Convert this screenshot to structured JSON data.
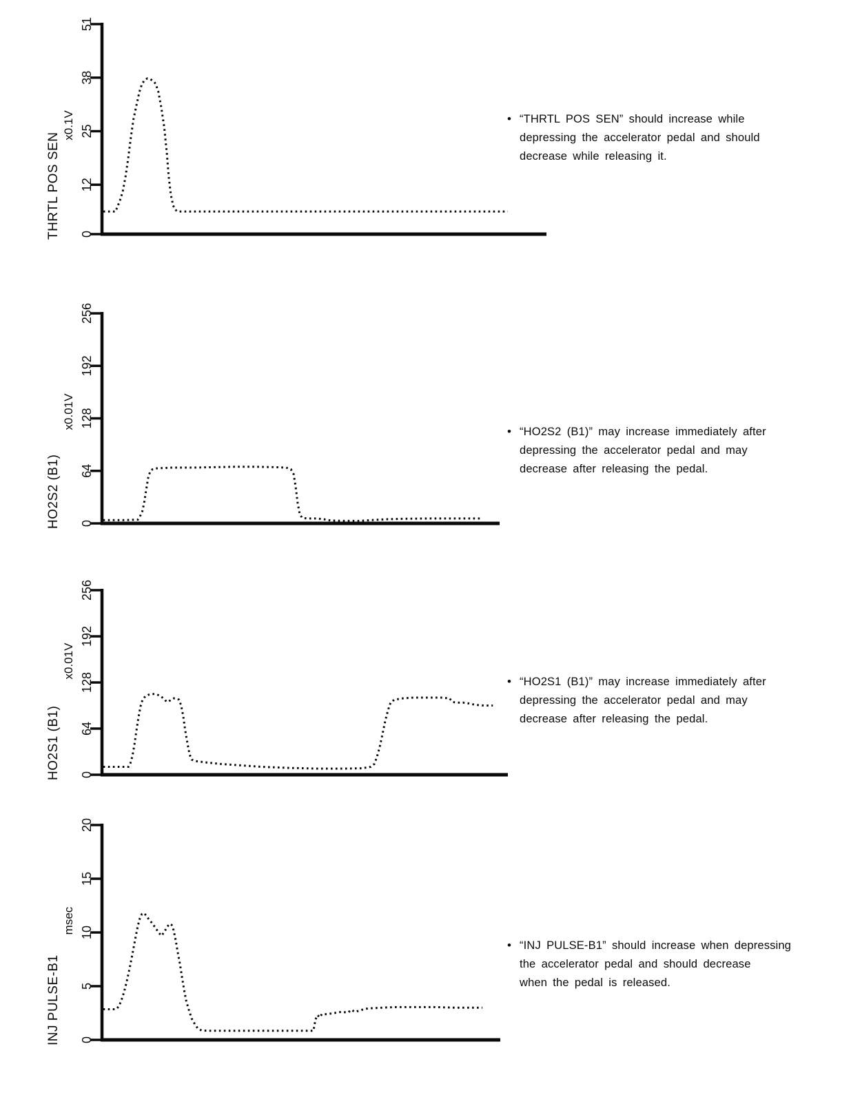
{
  "page": {
    "background": "#ffffff",
    "ink_color": "#0a0a0a",
    "bullet_char": "•",
    "notes": [
      {
        "lines": [
          "“THRTL POS SEN” should increase while",
          "depressing the accelerator pedal and should",
          "decrease while releasing it."
        ]
      },
      {
        "lines": [
          "“HO2S2 (B1)” may increase immediately after",
          "depressing the accelerator pedal and may",
          "decrease after releasing the pedal."
        ]
      },
      {
        "lines": [
          "“HO2S1 (B1)” may increase immediately after",
          "depressing the accelerator pedal and may",
          "decrease after releasing the pedal."
        ]
      },
      {
        "lines": [
          "“INJ PULSE-B1” should increase when depressing",
          "the accelerator pedal and should decrease",
          "when the pedal is released."
        ]
      }
    ]
  },
  "chart_data": [
    {
      "type": "line",
      "style": "dotted",
      "title": "THRTL POS SEN",
      "ylabel": "THRTL POS SEN",
      "unit": "x0.1V",
      "xlabel": "",
      "grid": false,
      "ylim": [
        0,
        51
      ],
      "yticks": [
        0,
        12,
        25,
        38,
        51
      ],
      "annotation": "“THRTL POS SEN” should increase while depressing the accelerator pedal and should decrease while releasing it.",
      "series": [
        {
          "name": "thrtl-pos-sen-trace",
          "points": [
            [
              0.003,
              5.5
            ],
            [
              0.031,
              5.5
            ],
            [
              0.034,
              6.5
            ],
            [
              0.04,
              8
            ],
            [
              0.047,
              10.5
            ],
            [
              0.053,
              14
            ],
            [
              0.059,
              18.5
            ],
            [
              0.065,
              23.5
            ],
            [
              0.071,
              28
            ],
            [
              0.078,
              31.5
            ],
            [
              0.084,
              34.5
            ],
            [
              0.09,
              36.5
            ],
            [
              0.096,
              37.4
            ],
            [
              0.102,
              37.8
            ],
            [
              0.109,
              37.6
            ],
            [
              0.115,
              37.2
            ],
            [
              0.121,
              36.5
            ],
            [
              0.127,
              34.5
            ],
            [
              0.133,
              31
            ],
            [
              0.14,
              26
            ],
            [
              0.146,
              19.5
            ],
            [
              0.15,
              14
            ],
            [
              0.155,
              9.5
            ],
            [
              0.16,
              7
            ],
            [
              0.164,
              6
            ],
            [
              0.17,
              5.5
            ],
            [
              0.913,
              5.5
            ]
          ]
        }
      ]
    },
    {
      "type": "line",
      "style": "dotted",
      "title": "HO2S2 (B1)",
      "ylabel": "HO2S2 (B1)",
      "unit": "x0.01V",
      "xlabel": "",
      "grid": false,
      "ylim": [
        0,
        256
      ],
      "yticks": [
        0,
        64,
        128,
        192,
        256
      ],
      "annotation": "“HO2S2 (B1)” may increase immediately after depressing the accelerator pedal and may decrease after releasing the pedal.",
      "series": [
        {
          "name": "ho2s2-b1-trace",
          "points": [
            [
              0.003,
              4
            ],
            [
              0.06,
              4
            ],
            [
              0.09,
              4.5
            ],
            [
              0.095,
              8
            ],
            [
              0.101,
              14
            ],
            [
              0.106,
              25
            ],
            [
              0.111,
              40
            ],
            [
              0.116,
              55
            ],
            [
              0.121,
              63
            ],
            [
              0.127,
              66
            ],
            [
              0.133,
              67
            ],
            [
              0.177,
              68
            ],
            [
              0.229,
              68
            ],
            [
              0.281,
              68.5
            ],
            [
              0.333,
              69
            ],
            [
              0.385,
              69
            ],
            [
              0.437,
              68.5
            ],
            [
              0.463,
              68
            ],
            [
              0.475,
              66
            ],
            [
              0.482,
              60
            ],
            [
              0.487,
              45
            ],
            [
              0.492,
              25
            ],
            [
              0.497,
              12
            ],
            [
              0.503,
              7
            ],
            [
              0.515,
              6
            ],
            [
              0.541,
              6
            ],
            [
              0.558,
              5
            ],
            [
              0.575,
              3.5
            ],
            [
              0.61,
              3
            ],
            [
              0.645,
              3
            ],
            [
              0.679,
              4
            ],
            [
              0.714,
              5
            ],
            [
              0.749,
              5.5
            ],
            [
              0.818,
              6
            ],
            [
              0.887,
              6
            ],
            [
              0.957,
              6
            ]
          ]
        }
      ]
    },
    {
      "type": "line",
      "style": "dotted",
      "title": "HO2S1 (B1)",
      "ylabel": "HO2S1 (B1)",
      "unit": "x0.01V",
      "xlabel": "",
      "grid": false,
      "ylim": [
        0,
        256
      ],
      "yticks": [
        0,
        64,
        128,
        192,
        256
      ],
      "annotation": "“HO2S1 (B1)” may increase immediately after depressing the accelerator pedal and may decrease after releasing the pedal.",
      "series": [
        {
          "name": "ho2s1-b1-trace",
          "points": [
            [
              0.003,
              11
            ],
            [
              0.065,
              11
            ],
            [
              0.07,
              16
            ],
            [
              0.075,
              26
            ],
            [
              0.08,
              42
            ],
            [
              0.085,
              62
            ],
            [
              0.09,
              80
            ],
            [
              0.095,
              95
            ],
            [
              0.1,
              104
            ],
            [
              0.107,
              109
            ],
            [
              0.115,
              111
            ],
            [
              0.124,
              112
            ],
            [
              0.132,
              112
            ],
            [
              0.141,
              110
            ],
            [
              0.149,
              107
            ],
            [
              0.156,
              103
            ],
            [
              0.163,
              101
            ],
            [
              0.17,
              104
            ],
            [
              0.177,
              106
            ],
            [
              0.183,
              106
            ],
            [
              0.19,
              104
            ],
            [
              0.195,
              96
            ],
            [
              0.2,
              82
            ],
            [
              0.205,
              62
            ],
            [
              0.211,
              42
            ],
            [
              0.216,
              28
            ],
            [
              0.221,
              21
            ],
            [
              0.229,
              19
            ],
            [
              0.258,
              17
            ],
            [
              0.292,
              15
            ],
            [
              0.343,
              13
            ],
            [
              0.394,
              11
            ],
            [
              0.462,
              9.5
            ],
            [
              0.53,
              8.5
            ],
            [
              0.598,
              8.5
            ],
            [
              0.64,
              9
            ],
            [
              0.662,
              11
            ],
            [
              0.671,
              15
            ],
            [
              0.677,
              24
            ],
            [
              0.684,
              38
            ],
            [
              0.691,
              56
            ],
            [
              0.698,
              75
            ],
            [
              0.705,
              90
            ],
            [
              0.711,
              100
            ],
            [
              0.72,
              104
            ],
            [
              0.742,
              106
            ],
            [
              0.767,
              107
            ],
            [
              0.801,
              107
            ],
            [
              0.835,
              107
            ],
            [
              0.856,
              106
            ],
            [
              0.864,
              101
            ],
            [
              0.874,
              100
            ],
            [
              0.89,
              100
            ],
            [
              0.903,
              99
            ],
            [
              0.92,
              97
            ],
            [
              0.941,
              96
            ],
            [
              0.963,
              96
            ]
          ]
        }
      ]
    },
    {
      "type": "line",
      "style": "dotted",
      "title": "INJ PULSE-B1",
      "ylabel": "INJ PULSE-B1",
      "unit": "msec",
      "xlabel": "",
      "grid": false,
      "ylim": [
        0,
        20
      ],
      "yticks": [
        0,
        5,
        10,
        15,
        20
      ],
      "annotation": "“INJ PULSE-B1” should increase when depressing the accelerator pedal and should decrease when the pedal is released.",
      "series": [
        {
          "name": "inj-pulse-b1-trace",
          "points": [
            [
              0.003,
              2.85
            ],
            [
              0.035,
              2.85
            ],
            [
              0.042,
              3.1
            ],
            [
              0.048,
              3.6
            ],
            [
              0.055,
              4.4
            ],
            [
              0.062,
              5.4
            ],
            [
              0.069,
              6.6
            ],
            [
              0.076,
              7.9
            ],
            [
              0.083,
              9.3
            ],
            [
              0.09,
              10.6
            ],
            [
              0.095,
              11.3
            ],
            [
              0.1,
              11.7
            ],
            [
              0.106,
              11.8
            ],
            [
              0.114,
              11.4
            ],
            [
              0.125,
              10.9
            ],
            [
              0.135,
              10.4
            ],
            [
              0.142,
              10.0
            ],
            [
              0.149,
              9.7
            ],
            [
              0.156,
              10.0
            ],
            [
              0.163,
              10.5
            ],
            [
              0.17,
              10.8
            ],
            [
              0.175,
              10.7
            ],
            [
              0.18,
              10.2
            ],
            [
              0.185,
              9.3
            ],
            [
              0.19,
              8.2
            ],
            [
              0.196,
              7.0
            ],
            [
              0.201,
              5.8
            ],
            [
              0.206,
              4.7
            ],
            [
              0.211,
              3.7
            ],
            [
              0.218,
              2.8
            ],
            [
              0.225,
              2.0
            ],
            [
              0.234,
              1.4
            ],
            [
              0.242,
              1.0
            ],
            [
              0.251,
              0.87
            ],
            [
              0.263,
              0.85
            ],
            [
              0.531,
              0.85
            ],
            [
              0.536,
              1.9
            ],
            [
              0.541,
              2.3
            ],
            [
              0.547,
              2.1
            ],
            [
              0.552,
              2.4
            ],
            [
              0.566,
              2.4
            ],
            [
              0.583,
              2.5
            ],
            [
              0.6,
              2.6
            ],
            [
              0.618,
              2.55
            ],
            [
              0.626,
              2.8
            ],
            [
              0.635,
              2.6
            ],
            [
              0.644,
              2.7
            ],
            [
              0.661,
              2.9
            ],
            [
              0.678,
              2.95
            ],
            [
              0.704,
              3.0
            ],
            [
              0.739,
              3.05
            ],
            [
              0.782,
              3.05
            ],
            [
              0.834,
              3.05
            ],
            [
              0.886,
              3.0
            ],
            [
              0.938,
              3.0
            ],
            [
              0.955,
              3.0
            ]
          ]
        }
      ]
    }
  ]
}
